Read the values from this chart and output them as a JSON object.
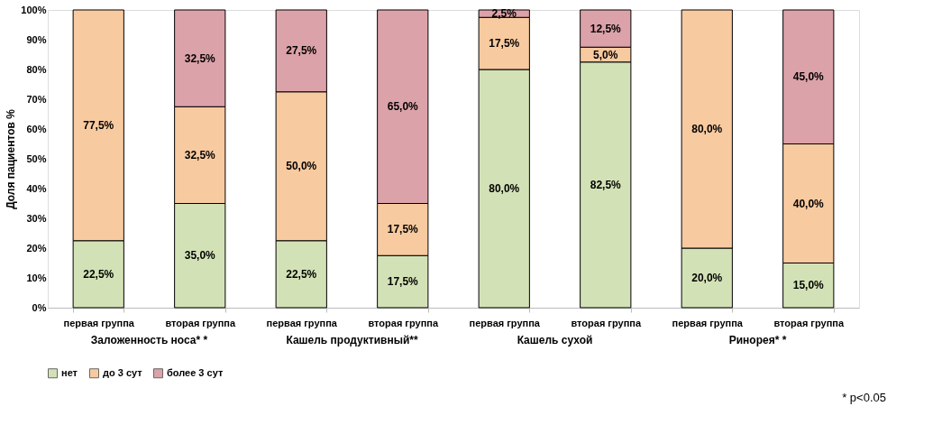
{
  "chart_data": {
    "type": "bar",
    "stacked": true,
    "ylabel": "Доля пациентов %",
    "categories": [
      "первая группа",
      "вторая группа",
      "первая группа",
      "вторая группа",
      "первая группа",
      "вторая группа",
      "первая группа",
      "вторая группа"
    ],
    "series": [
      {
        "name": "нет",
        "color": "#d3e2b6",
        "values": [
          22.5,
          35,
          22.5,
          17.5,
          80,
          82.5,
          20,
          15
        ],
        "value_labels": [
          "22,5%",
          "35,0%",
          "22,5%",
          "17,5%",
          "80,0%",
          "82,5%",
          "20,0%",
          "15,0%"
        ]
      },
      {
        "name": "до 3 сут",
        "color": "#f8caa0",
        "values": [
          77.5,
          32.5,
          50,
          17.5,
          17.5,
          5,
          80,
          40
        ],
        "value_labels": [
          "77,5%",
          "32,5%",
          "50,0%",
          "17,5%",
          "17,5%",
          "5,0%",
          "80,0%",
          "40,0%"
        ]
      },
      {
        "name": "более 3 сут",
        "color": "#dca2a9",
        "values": [
          0,
          32.5,
          27.5,
          65,
          2.5,
          12.5,
          0,
          45
        ],
        "value_labels": [
          null,
          "32,5%",
          "27,5%",
          "65,0%",
          "2,5%",
          "12,5%",
          null,
          "45,0%"
        ]
      }
    ],
    "ylim": [
      0,
      100
    ],
    "yticks": [
      {
        "value": 0,
        "label": "0%"
      },
      {
        "value": 10,
        "label": "10%"
      },
      {
        "value": 20,
        "label": "20%"
      },
      {
        "value": 30,
        "label": "30%"
      },
      {
        "value": 40,
        "label": "40%"
      },
      {
        "value": 50,
        "label": "50%"
      },
      {
        "value": 60,
        "label": "60%"
      },
      {
        "value": 70,
        "label": "70%"
      },
      {
        "value": 80,
        "label": "80%"
      },
      {
        "value": 90,
        "label": "90%"
      },
      {
        "value": 100,
        "label": "100%"
      }
    ],
    "grid": false,
    "legend": "bottom",
    "annotations": [
      "Заложенность носа* *",
      "Кашель продуктивный**",
      "Кашель сухой",
      "Ринорея* *",
      "* p<0.05"
    ]
  }
}
